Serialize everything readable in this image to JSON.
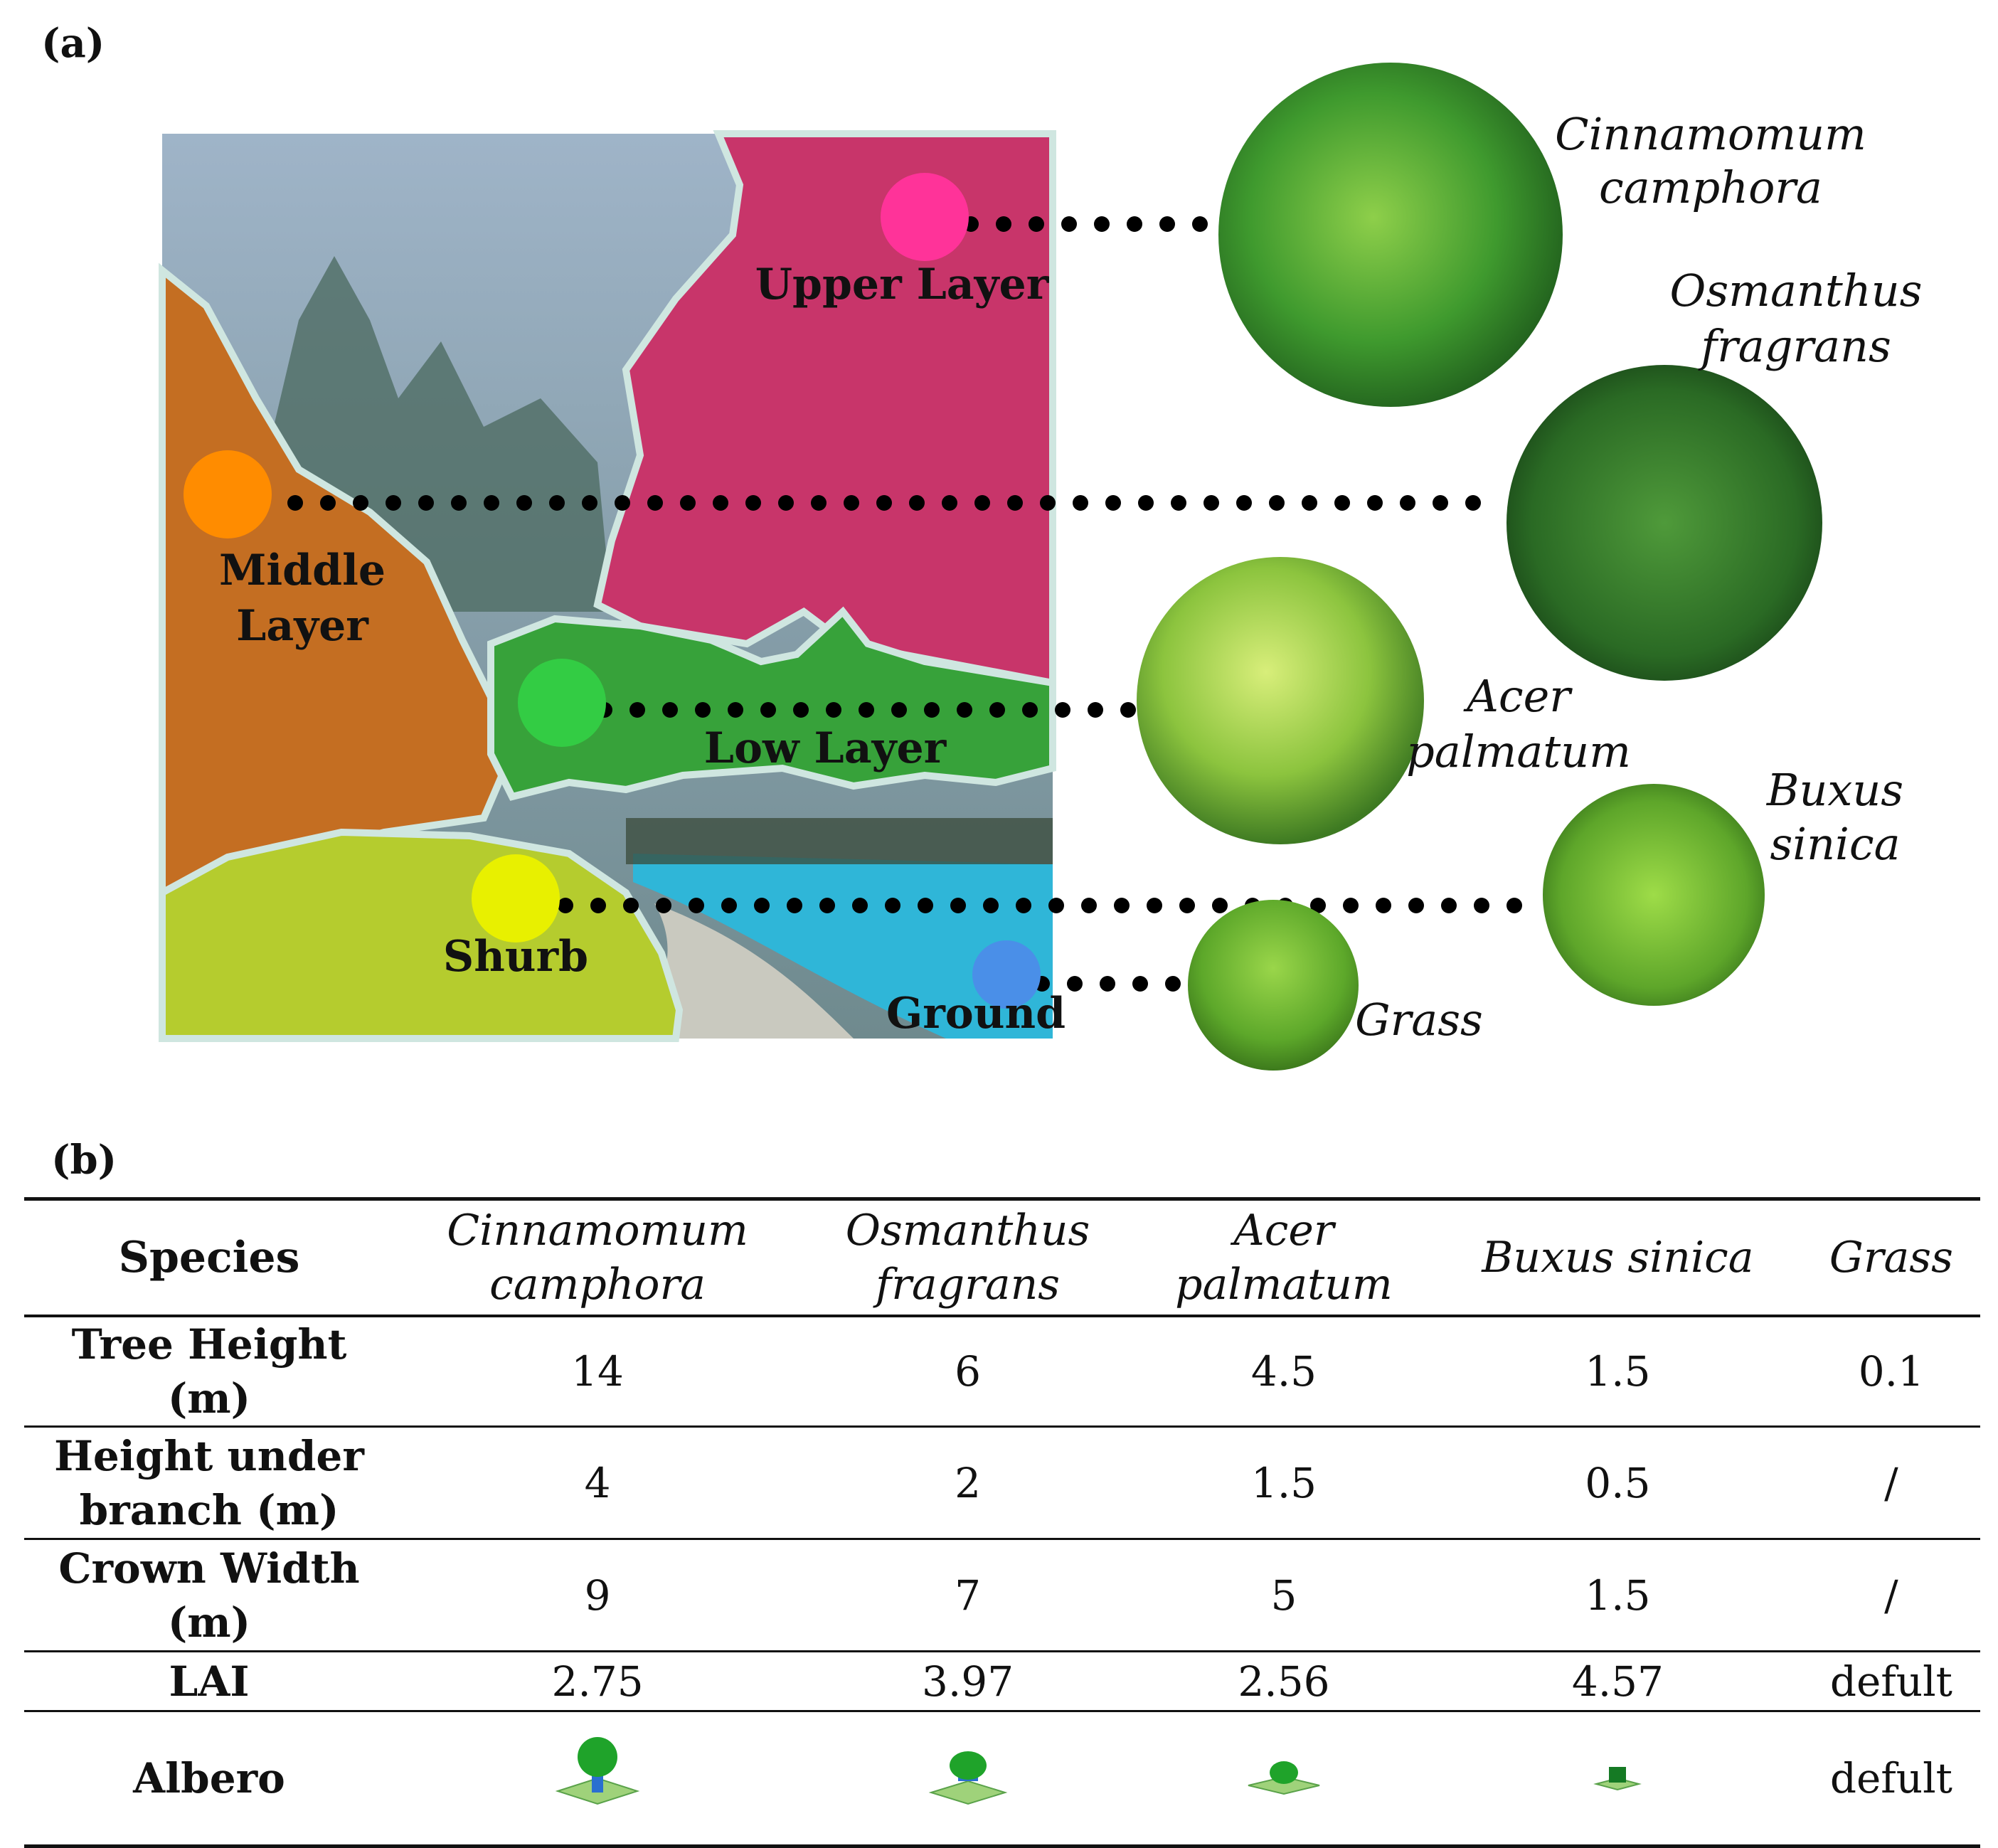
{
  "panel_a": {
    "label": "(a)",
    "layers": [
      {
        "name": "Upper Layer",
        "marker_color": "#ff3399"
      },
      {
        "name": "Middle Layer",
        "marker_color": "#ff8c00"
      },
      {
        "name": "Low Layer",
        "marker_color": "#33cc44"
      },
      {
        "name": "Shurb",
        "marker_color": "#e8f000"
      },
      {
        "name": "Ground",
        "marker_color": "#4a8fe8"
      }
    ],
    "middle_layer_lines": [
      "Middle",
      "Layer"
    ],
    "species": [
      {
        "lines": [
          "Cinnamomum",
          "camphora"
        ]
      },
      {
        "lines": [
          "Osmanthus",
          "fragrans"
        ]
      },
      {
        "lines": [
          "Acer",
          "palmatum"
        ]
      },
      {
        "lines": [
          "Buxus",
          "sinica"
        ]
      },
      {
        "lines": [
          "Grass"
        ]
      }
    ]
  },
  "panel_b": {
    "label": "(b)",
    "header": {
      "species": "Species",
      "cols": [
        {
          "l1": "Cinnamomum",
          "l2": "camphora"
        },
        {
          "l1": "Osmanthus",
          "l2": "fragrans"
        },
        {
          "l1": "Acer",
          "l2": "palmatum"
        },
        {
          "l1": "Buxus sinica",
          "l2": ""
        },
        {
          "l1": "Grass",
          "l2": ""
        }
      ]
    },
    "rows": [
      {
        "l1": "Tree Height (m)",
        "l2": "",
        "values": [
          "14",
          "6",
          "4.5",
          "1.5",
          "0.1"
        ]
      },
      {
        "l1": "Height under",
        "l2": "branch (m)",
        "values": [
          "4",
          "2",
          "1.5",
          "0.5",
          "/"
        ]
      },
      {
        "l1": "Crown Width",
        "l2": "(m)",
        "values": [
          "9",
          "7",
          "5",
          "1.5",
          "/"
        ]
      },
      {
        "l1": "LAI",
        "l2": "",
        "values": [
          "2.75",
          "3.97",
          "2.56",
          "4.57",
          "defult"
        ]
      }
    ],
    "albero_row": {
      "label": "Albero",
      "grass_value": "defult"
    }
  }
}
